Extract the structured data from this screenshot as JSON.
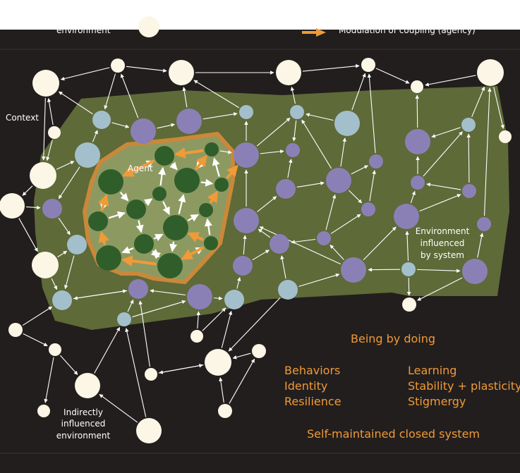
{
  "legend": {
    "left_label": "environment",
    "right_label": "Modulation of coupling (agency)"
  },
  "labels": {
    "agent": "Agent",
    "context": "Context",
    "environment_influenced": [
      "Environment",
      "influenced",
      "by system"
    ],
    "indirectly_influenced": [
      "Indirectly",
      "influenced",
      "environment"
    ]
  },
  "properties": {
    "heading": "Being by doing",
    "left_column": [
      "Behaviors",
      "Identity",
      "Resilience"
    ],
    "right_column": [
      "Learning",
      "Stability + plasticity",
      "Stigmergy"
    ],
    "footer": "Self-maintained closed system"
  },
  "colors": {
    "background": "#221e1d",
    "environment_region": "#5e6a38",
    "agent_region": "#8c9a62",
    "agent_border": "#c9883a",
    "agent_node": "#2f5e2a",
    "purple_node": "#8b80b6",
    "blue_node": "#a3bfcc",
    "white_node": "#fbf6e6",
    "white_arrow": "#ffffff",
    "orange_arrow": "#f09a38",
    "text_orange": "#f09a38",
    "text_white": "#ffffff"
  }
}
